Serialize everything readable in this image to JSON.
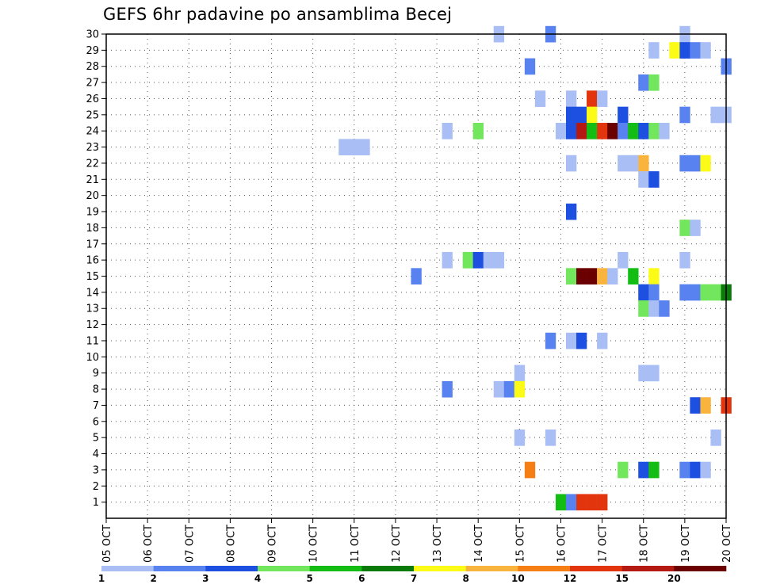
{
  "chart_data": {
    "type": "heatmap",
    "title": "GEFS 6hr padavine po ansamblima Becej",
    "xlabel": "",
    "ylabel": "",
    "x_ticks": [
      "05 OCT",
      "06 OCT",
      "07 OCT",
      "08 OCT",
      "09 OCT",
      "10 OCT",
      "11 OCT",
      "12 OCT",
      "13 OCT",
      "14 OCT",
      "15 OCT",
      "16 OCT",
      "17 OCT",
      "18 OCT",
      "19 OCT",
      "20 OCT"
    ],
    "x_range_days": [
      5,
      20
    ],
    "y_range": [
      0,
      30
    ],
    "y_ticks": [
      "1",
      "2",
      "3",
      "4",
      "5",
      "6",
      "7",
      "8",
      "9",
      "10",
      "11",
      "12",
      "13",
      "14",
      "15",
      "16",
      "17",
      "18",
      "19",
      "20",
      "21",
      "22",
      "23",
      "24",
      "25",
      "26",
      "27",
      "28",
      "29",
      "30"
    ],
    "grid": true,
    "legend_placement": "bottom",
    "legend": {
      "labels": [
        "1",
        "2",
        "3",
        "4",
        "5",
        "6",
        "7",
        "8",
        "10",
        "12",
        "15",
        "20"
      ],
      "colors": [
        "#a9bef5",
        "#5882ef",
        "#1d4fe0",
        "#72e65c",
        "#14bd14",
        "#0a7a0a",
        "#fbfb17",
        "#f9b43d",
        "#f57f14",
        "#e3350d",
        "#b51a12",
        "#6b0000"
      ]
    },
    "cells": [
      {
        "ens": 30,
        "t": 14.5,
        "c": 1
      },
      {
        "ens": 30,
        "t": 15.75,
        "c": 2
      },
      {
        "ens": 30,
        "t": 19.0,
        "c": 1
      },
      {
        "ens": 29,
        "t": 18.25,
        "c": 1
      },
      {
        "ens": 29,
        "t": 18.75,
        "c": 7
      },
      {
        "ens": 29,
        "t": 19.0,
        "c": 3
      },
      {
        "ens": 29,
        "t": 19.25,
        "c": 2
      },
      {
        "ens": 29,
        "t": 19.5,
        "c": 1
      },
      {
        "ens": 28,
        "t": 15.25,
        "c": 2
      },
      {
        "ens": 28,
        "t": 20.0,
        "c": 2
      },
      {
        "ens": 27,
        "t": 18.0,
        "c": 2
      },
      {
        "ens": 27,
        "t": 18.25,
        "c": 4
      },
      {
        "ens": 26,
        "t": 15.5,
        "c": 1
      },
      {
        "ens": 26,
        "t": 16.25,
        "c": 1
      },
      {
        "ens": 26,
        "t": 16.75,
        "c": 10
      },
      {
        "ens": 26,
        "t": 17.0,
        "c": 1
      },
      {
        "ens": 25,
        "t": 16.25,
        "c": 3
      },
      {
        "ens": 25,
        "t": 16.5,
        "c": 3
      },
      {
        "ens": 25,
        "t": 16.75,
        "c": 7
      },
      {
        "ens": 25,
        "t": 17.5,
        "c": 3
      },
      {
        "ens": 25,
        "t": 19.0,
        "c": 2
      },
      {
        "ens": 25,
        "t": 19.75,
        "c": 1
      },
      {
        "ens": 25,
        "t": 20.0,
        "c": 1
      },
      {
        "ens": 24,
        "t": 13.25,
        "c": 1
      },
      {
        "ens": 24,
        "t": 14.0,
        "c": 4
      },
      {
        "ens": 24,
        "t": 16.0,
        "c": 1
      },
      {
        "ens": 24,
        "t": 16.25,
        "c": 3
      },
      {
        "ens": 24,
        "t": 16.5,
        "c": 11
      },
      {
        "ens": 24,
        "t": 16.75,
        "c": 5
      },
      {
        "ens": 24,
        "t": 17.0,
        "c": 10
      },
      {
        "ens": 24,
        "t": 17.25,
        "c": 12
      },
      {
        "ens": 24,
        "t": 17.5,
        "c": 2
      },
      {
        "ens": 24,
        "t": 17.75,
        "c": 5
      },
      {
        "ens": 24,
        "t": 18.0,
        "c": 3
      },
      {
        "ens": 24,
        "t": 18.25,
        "c": 4
      },
      {
        "ens": 24,
        "t": 18.5,
        "c": 1
      },
      {
        "ens": 23,
        "t": 10.75,
        "c": 1
      },
      {
        "ens": 23,
        "t": 11.0,
        "c": 1
      },
      {
        "ens": 23,
        "t": 11.25,
        "c": 1
      },
      {
        "ens": 22,
        "t": 16.25,
        "c": 1
      },
      {
        "ens": 22,
        "t": 17.5,
        "c": 1
      },
      {
        "ens": 22,
        "t": 17.75,
        "c": 1
      },
      {
        "ens": 22,
        "t": 18.0,
        "c": 8
      },
      {
        "ens": 22,
        "t": 19.0,
        "c": 2
      },
      {
        "ens": 22,
        "t": 19.25,
        "c": 2
      },
      {
        "ens": 22,
        "t": 19.5,
        "c": 7
      },
      {
        "ens": 21,
        "t": 18.0,
        "c": 1
      },
      {
        "ens": 21,
        "t": 18.25,
        "c": 3
      },
      {
        "ens": 19,
        "t": 16.25,
        "c": 3
      },
      {
        "ens": 18,
        "t": 19.0,
        "c": 4
      },
      {
        "ens": 18,
        "t": 19.25,
        "c": 1
      },
      {
        "ens": 16,
        "t": 13.25,
        "c": 1
      },
      {
        "ens": 16,
        "t": 13.75,
        "c": 4
      },
      {
        "ens": 16,
        "t": 14.0,
        "c": 3
      },
      {
        "ens": 16,
        "t": 14.25,
        "c": 1
      },
      {
        "ens": 16,
        "t": 14.5,
        "c": 1
      },
      {
        "ens": 16,
        "t": 17.5,
        "c": 1
      },
      {
        "ens": 16,
        "t": 19.0,
        "c": 1
      },
      {
        "ens": 15,
        "t": 12.5,
        "c": 2
      },
      {
        "ens": 15,
        "t": 16.25,
        "c": 4
      },
      {
        "ens": 15,
        "t": 16.5,
        "c": 12
      },
      {
        "ens": 15,
        "t": 16.75,
        "c": 12
      },
      {
        "ens": 15,
        "t": 17.0,
        "c": 8
      },
      {
        "ens": 15,
        "t": 17.25,
        "c": 1
      },
      {
        "ens": 15,
        "t": 17.75,
        "c": 5
      },
      {
        "ens": 15,
        "t": 18.25,
        "c": 7
      },
      {
        "ens": 14,
        "t": 18.0,
        "c": 3
      },
      {
        "ens": 14,
        "t": 18.25,
        "c": 2
      },
      {
        "ens": 14,
        "t": 19.0,
        "c": 2
      },
      {
        "ens": 14,
        "t": 19.25,
        "c": 2
      },
      {
        "ens": 14,
        "t": 19.5,
        "c": 4
      },
      {
        "ens": 14,
        "t": 19.75,
        "c": 4
      },
      {
        "ens": 14,
        "t": 20.0,
        "c": 6
      },
      {
        "ens": 13,
        "t": 18.0,
        "c": 4
      },
      {
        "ens": 13,
        "t": 18.25,
        "c": 1
      },
      {
        "ens": 13,
        "t": 18.5,
        "c": 2
      },
      {
        "ens": 11,
        "t": 15.75,
        "c": 2
      },
      {
        "ens": 11,
        "t": 16.25,
        "c": 1
      },
      {
        "ens": 11,
        "t": 16.5,
        "c": 3
      },
      {
        "ens": 11,
        "t": 17.0,
        "c": 1
      },
      {
        "ens": 9,
        "t": 15.0,
        "c": 1
      },
      {
        "ens": 9,
        "t": 18.0,
        "c": 1
      },
      {
        "ens": 9,
        "t": 18.25,
        "c": 1
      },
      {
        "ens": 8,
        "t": 13.25,
        "c": 2
      },
      {
        "ens": 8,
        "t": 14.5,
        "c": 1
      },
      {
        "ens": 8,
        "t": 14.75,
        "c": 2
      },
      {
        "ens": 8,
        "t": 15.0,
        "c": 7
      },
      {
        "ens": 7,
        "t": 19.25,
        "c": 3
      },
      {
        "ens": 7,
        "t": 19.5,
        "c": 8
      },
      {
        "ens": 7,
        "t": 20.0,
        "c": 10
      },
      {
        "ens": 5,
        "t": 15.0,
        "c": 1
      },
      {
        "ens": 5,
        "t": 15.75,
        "c": 1
      },
      {
        "ens": 5,
        "t": 19.75,
        "c": 1
      },
      {
        "ens": 3,
        "t": 15.25,
        "c": 9
      },
      {
        "ens": 3,
        "t": 17.5,
        "c": 4
      },
      {
        "ens": 3,
        "t": 18.0,
        "c": 3
      },
      {
        "ens": 3,
        "t": 18.25,
        "c": 5
      },
      {
        "ens": 3,
        "t": 19.0,
        "c": 2
      },
      {
        "ens": 3,
        "t": 19.25,
        "c": 3
      },
      {
        "ens": 3,
        "t": 19.5,
        "c": 1
      },
      {
        "ens": 1,
        "t": 16.0,
        "c": 5
      },
      {
        "ens": 1,
        "t": 16.25,
        "c": 2
      },
      {
        "ens": 1,
        "t": 16.5,
        "c": 10
      },
      {
        "ens": 1,
        "t": 16.75,
        "c": 10
      },
      {
        "ens": 1,
        "t": 17.0,
        "c": 10
      }
    ]
  }
}
